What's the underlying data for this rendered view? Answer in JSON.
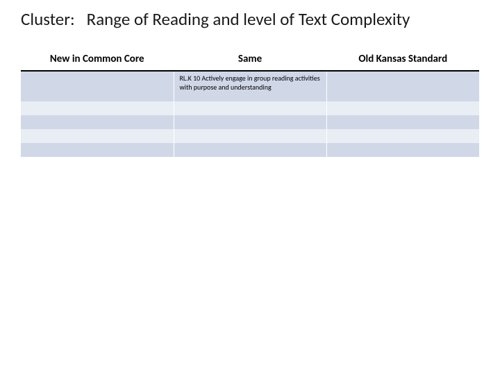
{
  "title_label": "Cluster:",
  "title_text": "Range of Reading and level of Text Complexity",
  "table": {
    "columns": [
      "New in Common Core",
      "Same",
      "Old Kansas Standard"
    ],
    "rows": [
      [
        "",
        "RL.K 10 Actively engage  in group reading activities with purpose and understanding",
        ""
      ],
      [
        "",
        "",
        ""
      ],
      [
        "",
        "",
        ""
      ],
      [
        "",
        "",
        ""
      ],
      [
        "",
        "",
        ""
      ]
    ],
    "header_fontsize": 15,
    "header_fontweight": 700,
    "header_border_bottom": "#000000",
    "cell_fontsize": 10,
    "row_colors": [
      "#d0d8e8",
      "#e9edf4",
      "#d0d8e8",
      "#e9edf4",
      "#d0d8e8"
    ],
    "background_color": "#ffffff",
    "text_color": "#000000"
  }
}
